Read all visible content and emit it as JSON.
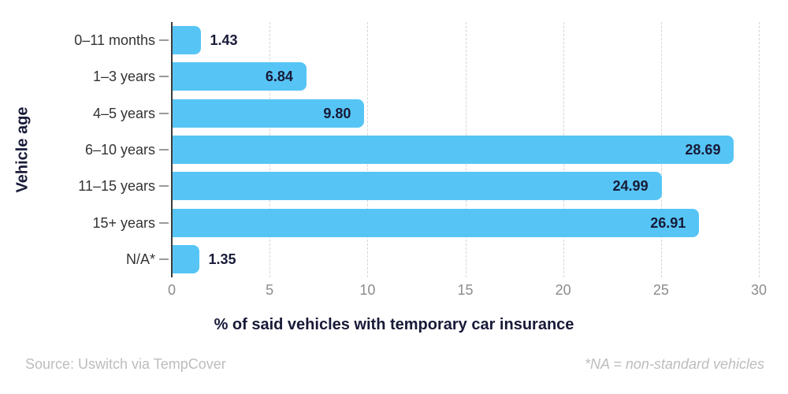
{
  "chart_data": {
    "type": "bar",
    "orientation": "horizontal",
    "categories": [
      "0–11 months",
      "1–3 years",
      "4–5 years",
      "6–10 years",
      "11–15 years",
      "15+ years",
      "N/A*"
    ],
    "values": [
      1.43,
      6.84,
      9.8,
      28.69,
      24.99,
      26.91,
      1.35
    ],
    "value_labels": [
      "1.43",
      "6.84",
      "9.80",
      "28.69",
      "24.99",
      "26.91",
      "1.35"
    ],
    "xlabel": "% of said vehicles with temporary car insurance",
    "ylabel": "Vehicle age",
    "xlim": [
      0,
      30
    ],
    "xticks": [
      0,
      5,
      10,
      15,
      20,
      25,
      30
    ],
    "grid": "vertical-dashed",
    "legend": "none",
    "bar_color": "#56C5F5"
  },
  "colors": {
    "bar": "#56C5F5",
    "value_label": "#181A38",
    "category_label": "#333333",
    "axis_title": "#181A38",
    "tick_label": "#8C8C8C",
    "gridline": "#D5D5D5",
    "axis_line": "#3C3C3C",
    "footer_text": "#BDBDBD"
  },
  "footer": {
    "source": "Source: Uswitch via TempCover",
    "note": "*NA = non-standard vehicles"
  }
}
